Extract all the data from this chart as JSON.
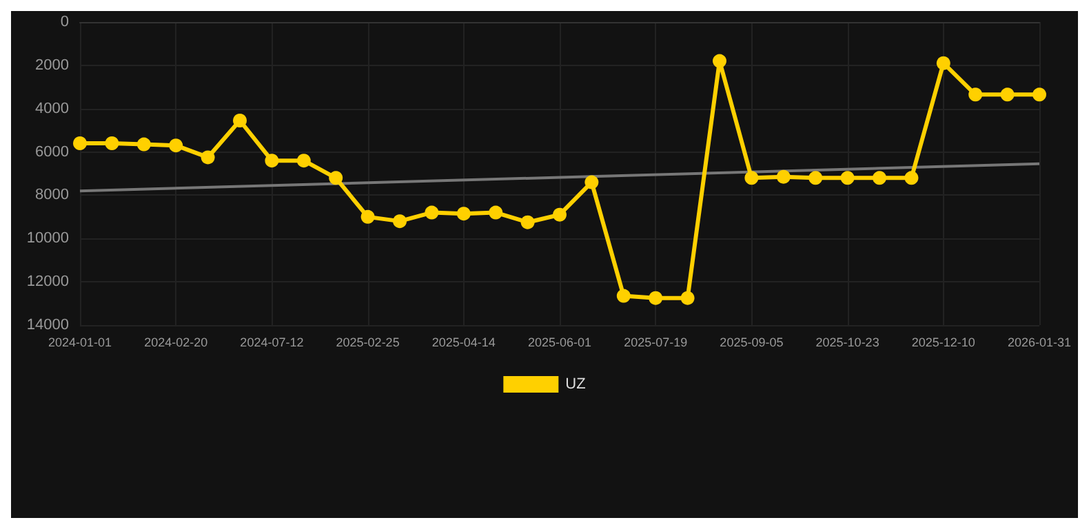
{
  "chart_data": {
    "type": "line",
    "categories": [
      "2024-01-01",
      null,
      null,
      "2024-02-20",
      null,
      null,
      "2024-07-12",
      null,
      null,
      "2025-02-25",
      null,
      null,
      "2025-04-14",
      null,
      null,
      "2025-06-01",
      null,
      null,
      "2025-07-19",
      null,
      null,
      "2025-09-05",
      null,
      null,
      "2025-10-23",
      null,
      null,
      "2025-12-10",
      null,
      null,
      "2026-01-31"
    ],
    "series": [
      {
        "name": "UZ",
        "color": "#ffd000",
        "marker": "circle",
        "values": [
          5600,
          5600,
          5650,
          5700,
          6250,
          4550,
          6400,
          6400,
          7200,
          9000,
          9200,
          8800,
          8850,
          8800,
          9250,
          8900,
          7400,
          12650,
          12750,
          12750,
          1800,
          7200,
          7150,
          7200,
          7200,
          7200,
          7200,
          1900,
          3350,
          3350,
          3350
        ]
      },
      {
        "type": "line",
        "color": "#777777",
        "marker": "none",
        "values": [
          7800,
          null,
          null,
          null,
          null,
          null,
          null,
          null,
          null,
          null,
          null,
          null,
          null,
          null,
          null,
          null,
          null,
          null,
          null,
          null,
          null,
          null,
          null,
          null,
          null,
          null,
          null,
          null,
          null,
          null,
          6550
        ]
      }
    ],
    "ylim": [
      14000,
      0
    ],
    "yticks": [
      0,
      2000,
      4000,
      6000,
      8000,
      10000,
      12000,
      14000
    ],
    "grid": true,
    "legend": "bottom"
  }
}
